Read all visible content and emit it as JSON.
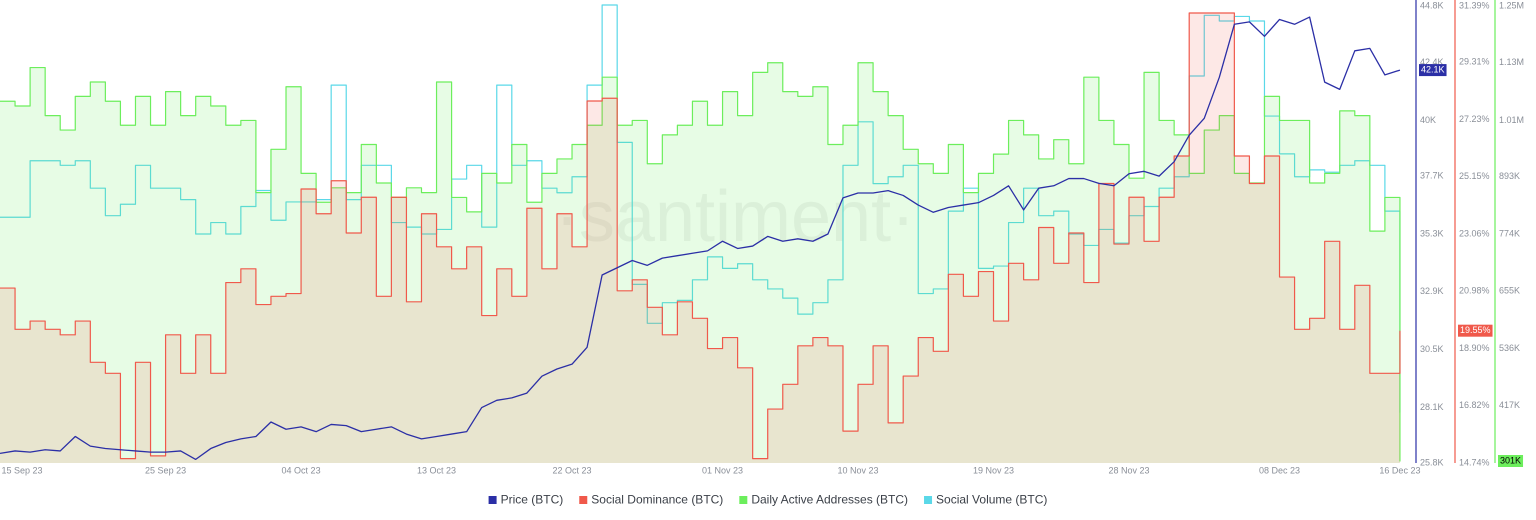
{
  "chart_data": {
    "type": "line",
    "watermark": "·santiment·",
    "x": [
      "2023-09-14",
      "2023-09-15",
      "2023-09-16",
      "2023-09-17",
      "2023-09-18",
      "2023-09-19",
      "2023-09-20",
      "2023-09-21",
      "2023-09-22",
      "2023-09-23",
      "2023-09-24",
      "2023-09-25",
      "2023-09-26",
      "2023-09-27",
      "2023-09-28",
      "2023-09-29",
      "2023-09-30",
      "2023-10-01",
      "2023-10-02",
      "2023-10-03",
      "2023-10-04",
      "2023-10-05",
      "2023-10-06",
      "2023-10-07",
      "2023-10-08",
      "2023-10-09",
      "2023-10-10",
      "2023-10-11",
      "2023-10-12",
      "2023-10-13",
      "2023-10-14",
      "2023-10-15",
      "2023-10-16",
      "2023-10-17",
      "2023-10-18",
      "2023-10-19",
      "2023-10-20",
      "2023-10-21",
      "2023-10-22",
      "2023-10-23",
      "2023-10-24",
      "2023-10-25",
      "2023-10-26",
      "2023-10-27",
      "2023-10-28",
      "2023-10-29",
      "2023-10-30",
      "2023-10-31",
      "2023-11-01",
      "2023-11-02",
      "2023-11-03",
      "2023-11-04",
      "2023-11-05",
      "2023-11-06",
      "2023-11-07",
      "2023-11-08",
      "2023-11-09",
      "2023-11-10",
      "2023-11-11",
      "2023-11-12",
      "2023-11-13",
      "2023-11-14",
      "2023-11-15",
      "2023-11-16",
      "2023-11-17",
      "2023-11-18",
      "2023-11-19",
      "2023-11-20",
      "2023-11-21",
      "2023-11-22",
      "2023-11-23",
      "2023-11-24",
      "2023-11-25",
      "2023-11-26",
      "2023-11-27",
      "2023-11-28",
      "2023-11-29",
      "2023-11-30",
      "2023-12-01",
      "2023-12-02",
      "2023-12-03",
      "2023-12-04",
      "2023-12-05",
      "2023-12-06",
      "2023-12-07",
      "2023-12-08",
      "2023-12-09",
      "2023-12-10",
      "2023-12-11",
      "2023-12-12",
      "2023-12-13",
      "2023-12-14",
      "2023-12-15",
      "2023-12-16"
    ],
    "xlim": [
      "2023-09-14",
      "2023-12-17"
    ],
    "xticks": [
      {
        "value": "2023-09-15",
        "label": "15 Sep 23"
      },
      {
        "value": "2023-09-25",
        "label": "25 Sep 23"
      },
      {
        "value": "2023-10-04",
        "label": "04 Oct 23"
      },
      {
        "value": "2023-10-13",
        "label": "13 Oct 23"
      },
      {
        "value": "2023-10-22",
        "label": "22 Oct 23"
      },
      {
        "value": "2023-11-01",
        "label": "01 Nov 23"
      },
      {
        "value": "2023-11-10",
        "label": "10 Nov 23"
      },
      {
        "value": "2023-11-19",
        "label": "19 Nov 23"
      },
      {
        "value": "2023-11-28",
        "label": "28 Nov 23"
      },
      {
        "value": "2023-12-08",
        "label": "08 Dec 23"
      },
      {
        "value": "2023-12-16",
        "label": "16 Dec 23"
      }
    ],
    "ylim": [
      25800,
      44800
    ],
    "yticks": [
      {
        "value": 44800,
        "label": "44.8K"
      },
      {
        "value": 42400,
        "label": "42.4K"
      },
      {
        "value": 40000,
        "label": "40K"
      },
      {
        "value": 37700,
        "label": "37.7K"
      },
      {
        "value": 35300,
        "label": "35.3K"
      },
      {
        "value": 32900,
        "label": "32.9K"
      },
      {
        "value": 30500,
        "label": "30.5K"
      },
      {
        "value": 28100,
        "label": "28.1K"
      },
      {
        "value": 25800,
        "label": "25.8K"
      }
    ],
    "y2lim": [
      14.74,
      31.39
    ],
    "y2ticks": [
      {
        "value": 31.39,
        "label": "31.39%"
      },
      {
        "value": 29.31,
        "label": "29.31%"
      },
      {
        "value": 27.23,
        "label": "27.23%"
      },
      {
        "value": 25.15,
        "label": "25.15%"
      },
      {
        "value": 23.06,
        "label": "23.06%"
      },
      {
        "value": 20.98,
        "label": "20.98%"
      },
      {
        "value": 18.9,
        "label": "18.90%"
      },
      {
        "value": 16.82,
        "label": "16.82%"
      },
      {
        "value": 14.74,
        "label": "14.74%"
      }
    ],
    "y3lim": [
      298000,
      1250000
    ],
    "y3ticks": [
      {
        "value": 1250000,
        "label": "1.25M"
      },
      {
        "value": 1130000,
        "label": "1.13M"
      },
      {
        "value": 1010000,
        "label": "1.01M"
      },
      {
        "value": 893000,
        "label": "893K"
      },
      {
        "value": 774000,
        "label": "774K"
      },
      {
        "value": 655000,
        "label": "655K"
      },
      {
        "value": 536000,
        "label": "536K"
      },
      {
        "value": 417000,
        "label": "417K"
      }
    ],
    "series": [
      {
        "name": "Price (BTC)",
        "color": "#2b2fa6",
        "axis": "y",
        "step": false,
        "last_label": "42.1K",
        "label_color": "#ffffff",
        "values": [
          26200,
          26300,
          26250,
          26350,
          26300,
          26900,
          26500,
          26400,
          26350,
          26300,
          26250,
          26250,
          26300,
          25950,
          26400,
          26650,
          26800,
          26900,
          27500,
          27200,
          27300,
          27100,
          27400,
          27350,
          27100,
          27200,
          27300,
          27000,
          26800,
          26900,
          27000,
          27100,
          28100,
          28400,
          28500,
          28700,
          29400,
          29700,
          29900,
          30600,
          33600,
          33900,
          34200,
          34000,
          34300,
          34400,
          34500,
          34600,
          35000,
          34700,
          34800,
          35200,
          35000,
          35100,
          35000,
          35300,
          36800,
          37000,
          37000,
          37100,
          36900,
          36500,
          36200,
          36400,
          36500,
          36600,
          36900,
          37300,
          36300,
          37200,
          37300,
          37600,
          37600,
          37400,
          37300,
          37800,
          37900,
          37700,
          38300,
          39400,
          40100,
          41800,
          44000,
          44100,
          43500,
          44200,
          44000,
          44300,
          41600,
          41300,
          42900,
          43000,
          41900,
          42100
        ]
      },
      {
        "name": "Social Dominance (BTC)",
        "color": "#f0594b",
        "axis": "y2",
        "step": true,
        "area_color": "rgba(240,89,75,0.14)",
        "last_label": "19.55%",
        "label_color": "#ffffff",
        "values": [
          21.1,
          19.6,
          19.9,
          19.6,
          19.4,
          19.9,
          18.4,
          18.0,
          14.9,
          18.4,
          15.0,
          19.4,
          18.0,
          19.4,
          18.0,
          21.3,
          21.8,
          20.5,
          20.8,
          20.9,
          24.7,
          23.8,
          25.0,
          23.1,
          24.4,
          20.8,
          24.4,
          20.6,
          23.8,
          22.6,
          21.8,
          22.6,
          20.1,
          21.8,
          20.8,
          24.0,
          21.8,
          23.8,
          22.6,
          27.9,
          28.0,
          21.0,
          21.4,
          20.4,
          19.4,
          20.6,
          20.0,
          18.9,
          19.3,
          18.2,
          14.9,
          16.7,
          17.6,
          19.0,
          19.3,
          19.0,
          15.9,
          17.6,
          19.0,
          16.2,
          17.9,
          19.3,
          18.8,
          21.6,
          20.8,
          21.7,
          19.9,
          22.0,
          21.4,
          23.3,
          22.0,
          23.1,
          21.3,
          24.9,
          22.7,
          24.4,
          22.8,
          24.4,
          25.9,
          31.1,
          31.1,
          31.1,
          25.9,
          24.9,
          25.9,
          21.5,
          19.6,
          20.0,
          22.8,
          19.6,
          21.2,
          18.0,
          18.0,
          19.55
        ]
      },
      {
        "name": "Daily Active Addresses (BTC)",
        "color": "#6cee5c",
        "axis": "y3",
        "step": true,
        "area_color": "rgba(108,238,92,0.16)",
        "last_label": "301K",
        "label_color": "#000000",
        "values": [
          1050000,
          1040000,
          1120000,
          1020000,
          990000,
          1060000,
          1090000,
          1050000,
          1000000,
          1060000,
          1000000,
          1070000,
          1020000,
          1060000,
          1040000,
          1000000,
          1010000,
          860000,
          950000,
          1080000,
          900000,
          840000,
          870000,
          860000,
          960000,
          880000,
          850000,
          870000,
          860000,
          1090000,
          850000,
          820000,
          900000,
          880000,
          960000,
          840000,
          900000,
          930000,
          960000,
          1000000,
          1100000,
          1000000,
          1010000,
          920000,
          980000,
          1000000,
          1050000,
          1000000,
          1070000,
          1020000,
          1110000,
          1130000,
          1070000,
          1060000,
          1080000,
          960000,
          1000000,
          1130000,
          1070000,
          1020000,
          950000,
          920000,
          900000,
          960000,
          860000,
          900000,
          940000,
          1010000,
          980000,
          930000,
          970000,
          920000,
          1100000,
          1010000,
          960000,
          890000,
          1110000,
          1010000,
          980000,
          900000,
          990000,
          1020000,
          900000,
          880000,
          1060000,
          1010000,
          1010000,
          880000,
          900000,
          1030000,
          1020000,
          780000,
          850000,
          301000
        ]
      },
      {
        "name": "Social Volume (BTC)",
        "color": "#5ad8e8",
        "step": true,
        "values": [
          1073,
          1073,
          1320,
          1320,
          1300,
          1320,
          1200,
          1080,
          1130,
          1300,
          1200,
          1200,
          1150,
          1000,
          1050,
          1000,
          1120,
          1190,
          1060,
          1140,
          1140,
          1150,
          1650,
          1150,
          1300,
          1300,
          1050,
          1030,
          1000,
          1020,
          1240,
          1300,
          1030,
          1650,
          1300,
          1320,
          1200,
          1180,
          1250,
          1650,
          2000,
          1400,
          780,
          610,
          700,
          710,
          800,
          900,
          850,
          870,
          800,
          760,
          720,
          650,
          700,
          800,
          1300,
          1490,
          1220,
          1250,
          1300,
          740,
          760,
          1100,
          1200,
          850,
          860,
          1050,
          1200,
          1080,
          1100,
          1000,
          950,
          1020,
          960,
          1080,
          1120,
          1200,
          1250,
          1690,
          1955,
          1930,
          1950,
          1930,
          1515,
          1350,
          1250,
          1280,
          1270,
          1300,
          1320,
          1300,
          1100,
          220
        ]
      }
    ]
  }
}
